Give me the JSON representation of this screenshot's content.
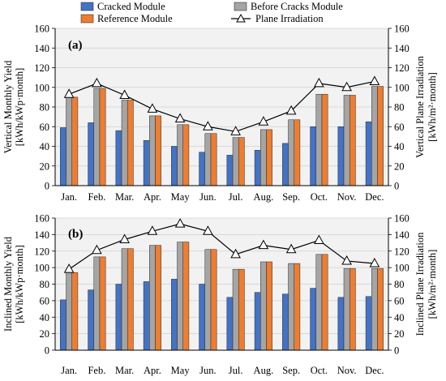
{
  "legend": {
    "items": [
      {
        "label": "Cracked Module",
        "kind": "bar",
        "color": "#4472c4"
      },
      {
        "label": "Before Cracks Module",
        "kind": "bar",
        "color": "#a5a5a5"
      },
      {
        "label": "Reference Module",
        "kind": "bar",
        "color": "#ed7d31"
      },
      {
        "label": "Plane Irradiation",
        "kind": "line-triangle",
        "color": "#000000"
      }
    ]
  },
  "chart_data": [
    {
      "type": "bar",
      "panel_label": "(a)",
      "categories": [
        "Jan.",
        "Feb.",
        "Mar.",
        "Apr.",
        "May",
        "Jun.",
        "Jul.",
        "Aug.",
        "Sep.",
        "Oct.",
        "Nov.",
        "Dec."
      ],
      "series": [
        {
          "name": "Cracked Module",
          "values": [
            59,
            64,
            56,
            46,
            40,
            34,
            31,
            36,
            43,
            60,
            60,
            65
          ]
        },
        {
          "name": "Before Cracks Module",
          "values": [
            90,
            99,
            87,
            71,
            62,
            53,
            49,
            57,
            67,
            93,
            92,
            101
          ]
        },
        {
          "name": "Reference Module",
          "values": [
            90,
            99,
            87,
            71,
            62,
            53,
            49,
            57,
            67,
            93,
            92,
            101
          ]
        }
      ],
      "line": {
        "name": "Plane Irradiation",
        "axis": "right",
        "values": [
          93,
          104,
          92,
          78,
          68,
          60,
          55,
          65,
          76,
          104,
          100,
          106
        ]
      },
      "ylabel": [
        "Vertical Monthly Yield",
        "[kWh/kWp·month]"
      ],
      "ylabel_right": [
        "Vertical Plane Irradiation",
        "[kWh/m²·month]"
      ],
      "ylim": [
        0,
        160
      ],
      "yticks": [
        0,
        20,
        40,
        60,
        80,
        100,
        120,
        140,
        160
      ],
      "ylim_right": [
        0,
        160
      ],
      "yticks_right": [
        0,
        20,
        40,
        60,
        80,
        100,
        120,
        140,
        160
      ],
      "grid": true
    },
    {
      "type": "bar",
      "panel_label": "(b)",
      "categories": [
        "Jan.",
        "Feb.",
        "Mar.",
        "Apr.",
        "May",
        "Jun.",
        "Jul.",
        "Aug.",
        "Sep.",
        "Oct.",
        "Nov.",
        "Dec."
      ],
      "series": [
        {
          "name": "Cracked Module",
          "values": [
            61,
            73,
            80,
            83,
            86,
            80,
            64,
            70,
            68,
            75,
            64,
            65
          ]
        },
        {
          "name": "Before Cracks Module",
          "values": [
            94,
            113,
            123,
            127,
            131,
            122,
            98,
            107,
            105,
            116,
            99,
            99
          ]
        },
        {
          "name": "Reference Module",
          "values": [
            94,
            113,
            123,
            127,
            131,
            122,
            98,
            107,
            105,
            116,
            99,
            99
          ]
        }
      ],
      "line": {
        "name": "Plane Irradiation",
        "axis": "right",
        "values": [
          98,
          121,
          134,
          144,
          153,
          144,
          116,
          127,
          122,
          133,
          108,
          105
        ]
      },
      "ylabel": [
        "Inclined Monthly Yield",
        "[kWh/kWp·month]"
      ],
      "ylabel_right": [
        "Inclined Plane Irradiation",
        "[kWh/m²·month]"
      ],
      "ylim": [
        0,
        160
      ],
      "yticks": [
        0,
        20,
        40,
        60,
        80,
        100,
        120,
        140,
        160
      ],
      "ylim_right": [
        0,
        160
      ],
      "yticks_right": [
        0,
        20,
        40,
        60,
        80,
        100,
        120,
        140,
        160
      ],
      "grid": true
    }
  ]
}
